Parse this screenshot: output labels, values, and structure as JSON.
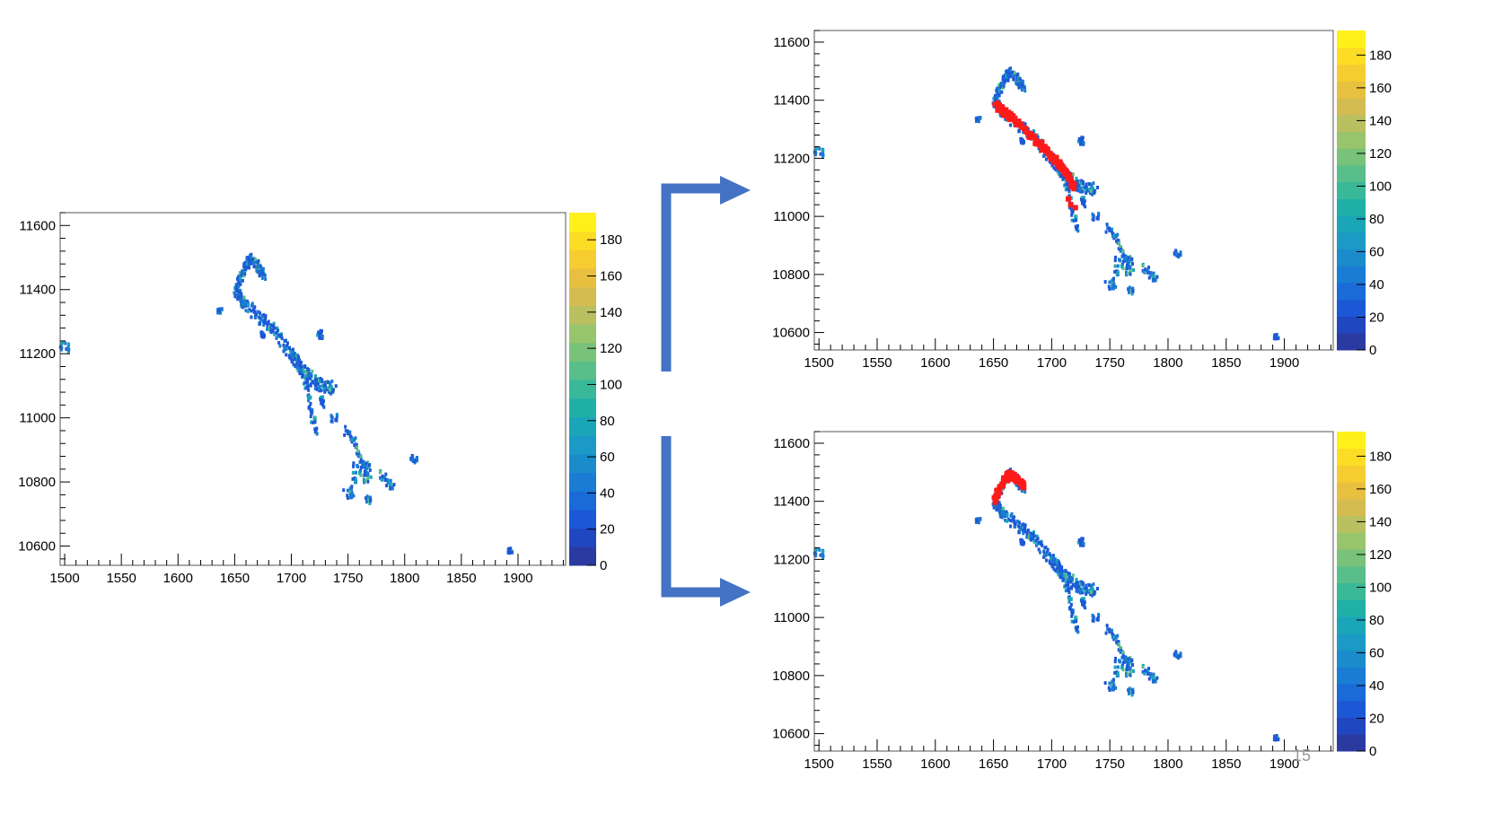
{
  "page": {
    "slide_number": "15"
  },
  "colors": {
    "flow_arrow": "#4472c4",
    "highlight": "#ff1a1a",
    "palette": [
      "#2a3aa0",
      "#2046c0",
      "#1c58d6",
      "#1a6ad8",
      "#1a7cd2",
      "#1a8ccc",
      "#1a9ac4",
      "#1aa6b8",
      "#20b0a8",
      "#3ab89a",
      "#58be8a",
      "#78c27a",
      "#98c46c",
      "#b8c060",
      "#d4bc52",
      "#e8c040",
      "#f6cc30",
      "#fcdc24",
      "#fff01a"
    ]
  },
  "chart_data": [
    {
      "id": "input",
      "type": "heatmap",
      "x_ticks": [
        1500,
        1550,
        1600,
        1650,
        1700,
        1750,
        1800,
        1850,
        1900
      ],
      "y_ticks": [
        10600,
        10800,
        11000,
        11200,
        11400,
        11600
      ],
      "xlim": [
        1496,
        1942
      ],
      "ylim": [
        10540,
        11640
      ],
      "z_ticks": [
        0,
        20,
        40,
        60,
        80,
        100,
        120,
        140,
        160,
        180
      ],
      "zlim": [
        0,
        195
      ],
      "highlight": "none",
      "grid": false
    },
    {
      "id": "output-main-track",
      "type": "heatmap",
      "x_ticks": [
        1500,
        1550,
        1600,
        1650,
        1700,
        1750,
        1800,
        1850,
        1900
      ],
      "y_ticks": [
        10600,
        10800,
        11000,
        11200,
        11400,
        11600
      ],
      "xlim": [
        1496,
        1942
      ],
      "ylim": [
        10540,
        11640
      ],
      "z_ticks": [
        0,
        20,
        40,
        60,
        80,
        100,
        120,
        140,
        160,
        180
      ],
      "zlim": [
        0,
        195
      ],
      "highlight": "main-track",
      "grid": false
    },
    {
      "id": "output-hook",
      "type": "heatmap",
      "x_ticks": [
        1500,
        1550,
        1600,
        1650,
        1700,
        1750,
        1800,
        1850,
        1900
      ],
      "y_ticks": [
        10600,
        10800,
        11000,
        11200,
        11400,
        11600
      ],
      "xlim": [
        1496,
        1942
      ],
      "ylim": [
        10540,
        11640
      ],
      "z_ticks": [
        0,
        20,
        40,
        60,
        80,
        100,
        120,
        140,
        160,
        180
      ],
      "zlim": [
        0,
        195
      ],
      "highlight": "hook",
      "grid": false
    }
  ]
}
